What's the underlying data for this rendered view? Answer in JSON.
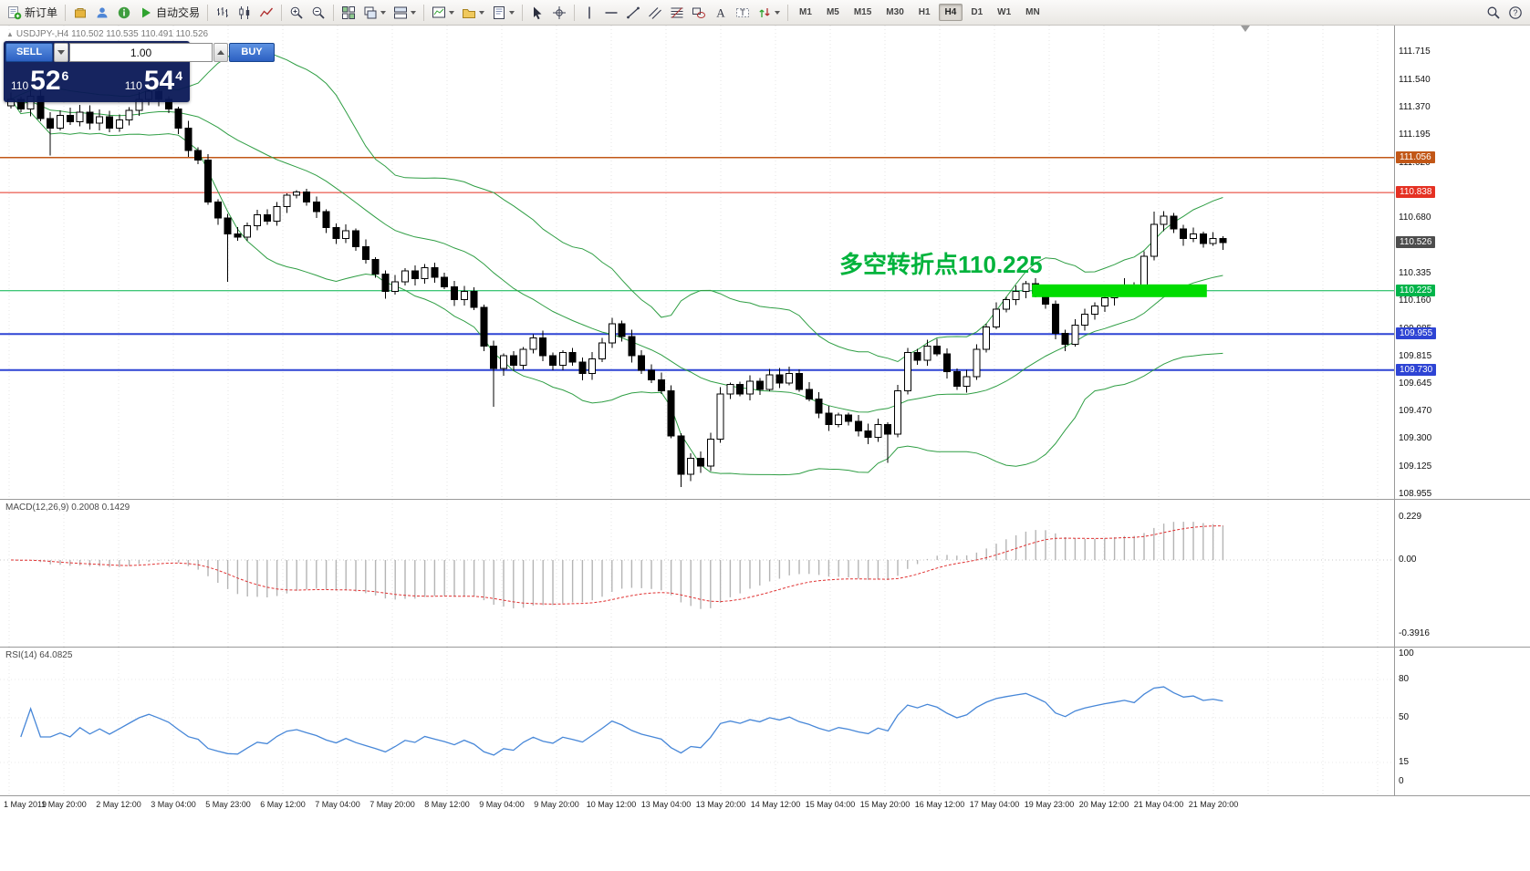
{
  "toolbar": {
    "groups": [
      {
        "items": [
          {
            "name": "new-order-button",
            "icon": "new-order-icon",
            "label": "新订单"
          }
        ]
      },
      {
        "items": [
          {
            "name": "mql5-market-button",
            "icon": "market-icon"
          },
          {
            "name": "community-button",
            "icon": "community-icon"
          },
          {
            "name": "news-button",
            "icon": "news-icon"
          },
          {
            "name": "autotrading-button",
            "icon": "autotrading-icon",
            "label": "自动交易"
          }
        ]
      },
      {
        "items": [
          {
            "name": "bar-chart-button",
            "icon": "bar-chart-icon"
          },
          {
            "name": "candlestick-chart-button",
            "icon": "candlestick-chart-icon"
          },
          {
            "name": "line-chart-button",
            "icon": "line-chart-icon"
          }
        ]
      },
      {
        "items": [
          {
            "name": "zoom-in-button",
            "icon": "zoom-in-icon"
          },
          {
            "name": "zoom-out-button",
            "icon": "zoom-out-icon"
          }
        ]
      },
      {
        "items": [
          {
            "name": "tile-windows-button",
            "icon": "tile-windows-icon"
          },
          {
            "name": "cascade-windows-button",
            "icon": "cascade-windows-icon",
            "dropdown": true
          },
          {
            "name": "arrange-windows-button",
            "icon": "arrange-windows-icon",
            "dropdown": true
          }
        ]
      },
      {
        "items": [
          {
            "name": "new-chart-button",
            "icon": "new-chart-icon",
            "dropdown": true
          },
          {
            "name": "profiles-button",
            "icon": "profiles-icon",
            "dropdown": true
          },
          {
            "name": "templates-button",
            "icon": "templates-icon",
            "dropdown": true
          }
        ]
      },
      {
        "items": [
          {
            "name": "cursor-button",
            "icon": "cursor-icon"
          },
          {
            "name": "crosshair-button",
            "icon": "crosshair-icon"
          }
        ]
      },
      {
        "items": [
          {
            "name": "vertical-line-button",
            "icon": "vertical-line-icon"
          },
          {
            "name": "horizontal-line-button",
            "icon": "horizontal-line-icon"
          },
          {
            "name": "trendline-button",
            "icon": "trendline-icon"
          },
          {
            "name": "channel-button",
            "icon": "channel-icon"
          },
          {
            "name": "fibonacci-button",
            "icon": "fibonacci-icon"
          },
          {
            "name": "shapes-button",
            "icon": "shapes-icon"
          },
          {
            "name": "text-button",
            "icon": "text-icon"
          },
          {
            "name": "label-button",
            "icon": "label-icon"
          },
          {
            "name": "arrows-button",
            "icon": "arrows-icon",
            "dropdown": true
          }
        ]
      }
    ],
    "timeframes": {
      "options": [
        "M1",
        "M5",
        "M15",
        "M30",
        "H1",
        "H4",
        "D1",
        "W1",
        "MN"
      ],
      "active": "H4"
    },
    "right_icons": [
      {
        "name": "search-button",
        "icon": "search-icon"
      },
      {
        "name": "quick-help-button",
        "icon": "help-icon"
      }
    ]
  },
  "symbol_info": {
    "collapse_icon": "▲",
    "text": "USDJPY-,H4  110.502 110.535 110.491 110.526"
  },
  "quote_panel": {
    "sell_label": "SELL",
    "buy_label": "BUY",
    "volume": "1.00",
    "bid": {
      "prefix": "110",
      "big": "52",
      "sup": "6"
    },
    "ask": {
      "prefix": "110",
      "big": "54",
      "sup": "4"
    }
  },
  "annotation": {
    "text": "多空转折点110.225",
    "color": "#00b33c"
  },
  "chart_data": {
    "type": "candlestick",
    "symbol": "USDJPY-",
    "timeframe": "H4",
    "current_bar_ohlc": "110.502 110.535 110.491 110.526",
    "price_axis": {
      "labels": [
        "111.715",
        "111.540",
        "111.370",
        "111.195",
        "111.020",
        "110.850",
        "110.680",
        "110.505",
        "110.335",
        "110.160",
        "109.985",
        "109.815",
        "109.645",
        "109.470",
        "109.300",
        "109.125",
        "108.955"
      ]
    },
    "levels": [
      {
        "price": 111.056,
        "badge": "111.056",
        "color": "#c25717",
        "type": "hline",
        "width": 1.5
      },
      {
        "price": 110.838,
        "badge": "110.838",
        "color": "#e53123",
        "type": "hline",
        "width": 1
      },
      {
        "price": 110.526,
        "badge": "110.526",
        "color": "#4d4d4d",
        "type": "price-marker"
      },
      {
        "price": 110.225,
        "badge": "110.225",
        "color": "#00b44a",
        "type": "hline",
        "width": 1
      },
      {
        "price": 109.955,
        "badge": "109.955",
        "color": "#2e44d4",
        "type": "hline",
        "width": 2
      },
      {
        "price": 109.73,
        "badge": "109.730",
        "color": "#2e44d4",
        "type": "hline",
        "width": 2
      }
    ],
    "highlight_zone": {
      "from_index": 104,
      "to_index": 121,
      "price": 110.225,
      "thickness_px": 14,
      "color": "#00dc00"
    },
    "candles": {
      "first_open": 111.38,
      "closes": [
        111.42,
        111.36,
        111.44,
        111.3,
        111.24,
        111.32,
        111.28,
        111.34,
        111.27,
        111.31,
        111.24,
        111.29,
        111.35,
        111.42,
        111.47,
        111.42,
        111.36,
        111.24,
        111.1,
        111.04,
        110.78,
        110.68,
        110.58,
        110.56,
        110.63,
        110.7,
        110.66,
        110.75,
        110.82,
        110.84,
        110.78,
        110.72,
        110.62,
        110.55,
        110.6,
        110.5,
        110.42,
        110.33,
        110.22,
        110.28,
        110.35,
        110.3,
        110.37,
        110.31,
        110.25,
        110.17,
        110.22,
        110.12,
        109.88,
        109.74,
        109.82,
        109.76,
        109.86,
        109.93,
        109.82,
        109.76,
        109.84,
        109.78,
        109.71,
        109.8,
        109.9,
        110.02,
        109.94,
        109.82,
        109.73,
        109.67,
        109.6,
        109.32,
        109.08,
        109.18,
        109.13,
        109.3,
        109.58,
        109.64,
        109.58,
        109.66,
        109.61,
        109.7,
        109.65,
        109.71,
        109.61,
        109.55,
        109.46,
        109.39,
        109.45,
        109.41,
        109.35,
        109.31,
        109.39,
        109.33,
        109.6,
        109.84,
        109.79,
        109.88,
        109.83,
        109.72,
        109.63,
        109.69,
        109.86,
        110.0,
        110.11,
        110.17,
        110.22,
        110.27,
        110.21,
        110.14,
        109.96,
        109.89,
        110.01,
        110.08,
        110.13,
        110.18,
        110.22,
        110.26,
        110.23,
        110.44,
        110.64,
        110.69,
        110.61,
        110.55,
        110.58,
        110.52,
        110.55,
        110.526
      ],
      "wick_overrides": {
        "4": {
          "low": 111.07
        },
        "22": {
          "low": 110.28
        },
        "49": {
          "low": 109.5
        },
        "68": {
          "low": 109.0
        },
        "89": {
          "low": 109.15
        },
        "116": {
          "high": 110.72
        }
      }
    },
    "bollinger": {
      "period": 20,
      "deviation": 2,
      "color": "#2f9e44"
    },
    "macd": {
      "label": "MACD(12,26,9) 0.2008 0.1429",
      "fast": 12,
      "slow": 26,
      "signal": 9,
      "histogram_color": "#b4b4b4",
      "signal_color": "#e03131",
      "range": {
        "top": 0.3,
        "bottom": -0.44
      },
      "axis_labels": [
        {
          "text": "0.229",
          "value": 0.229
        },
        {
          "text": "0.00",
          "value": 0
        },
        {
          "text": "-0.3916",
          "value": -0.3916
        }
      ]
    },
    "rsi": {
      "label": "RSI(14) 64.0825",
      "period": 14,
      "color": "#4787d8",
      "axis_labels": [
        {
          "text": "100",
          "value": 100
        },
        {
          "text": "80",
          "value": 80
        },
        {
          "text": "50",
          "value": 50
        },
        {
          "text": "15",
          "value": 15
        },
        {
          "text": "0",
          "value": 0
        }
      ]
    },
    "time_axis": [
      "1 May 2019",
      "1 May 20:00",
      "2 May 12:00",
      "3 May 04:00",
      "5 May 23:00",
      "6 May 12:00",
      "7 May 04:00",
      "7 May 20:00",
      "8 May 12:00",
      "9 May 04:00",
      "9 May 20:00",
      "10 May 12:00",
      "13 May 04:00",
      "13 May 20:00",
      "14 May 12:00",
      "15 May 04:00",
      "15 May 20:00",
      "16 May 12:00",
      "17 May 04:00",
      "19 May 23:00",
      "20 May 12:00",
      "21 May 04:00",
      "21 May 20:00"
    ]
  }
}
